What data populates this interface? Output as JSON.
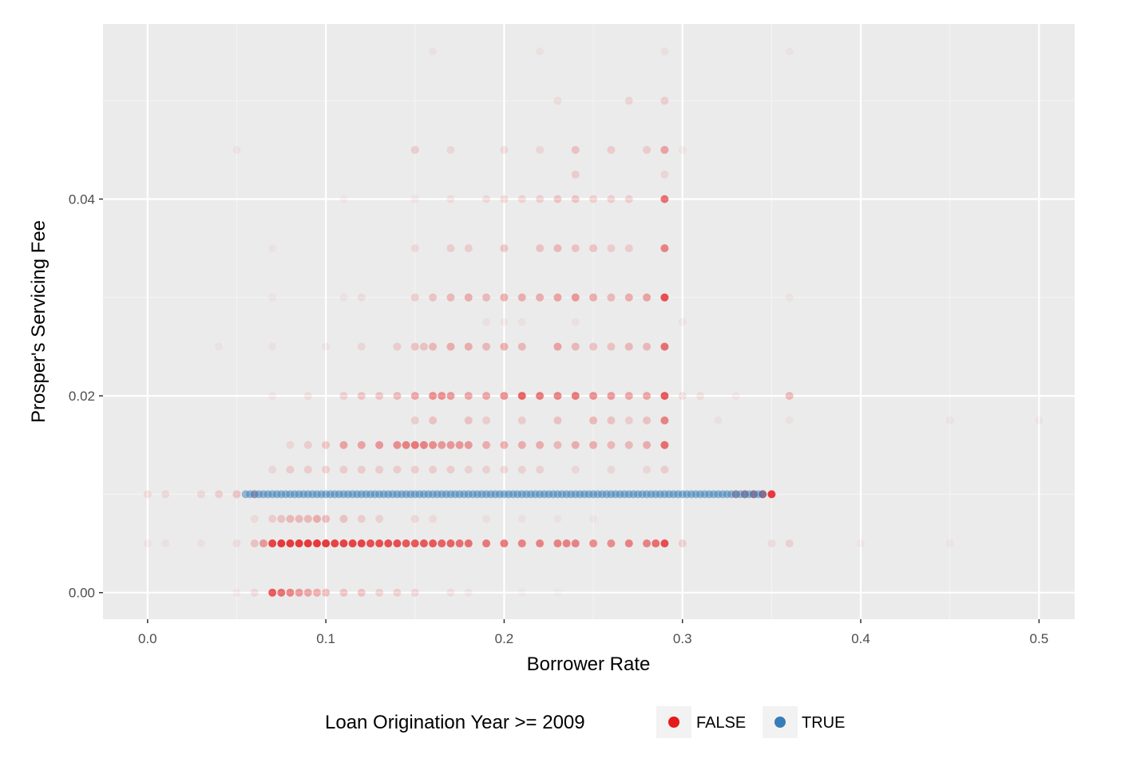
{
  "chart_data": {
    "type": "scatter",
    "title": "",
    "xlabel": "Borrower Rate",
    "ylabel": "Prosper's Servicing Fee",
    "xlim": [
      -0.025,
      0.52
    ],
    "ylim": [
      -0.0027,
      0.0578
    ],
    "x_ticks": [
      0.0,
      0.1,
      0.2,
      0.3,
      0.4,
      0.5
    ],
    "x_tick_labels": [
      "0.0",
      "0.1",
      "0.2",
      "0.3",
      "0.4",
      "0.5"
    ],
    "y_ticks": [
      0.0,
      0.02,
      0.04
    ],
    "y_tick_labels": [
      "0.00",
      "0.02",
      "0.04"
    ],
    "y_minor_ticks": [
      0.01,
      0.03,
      0.05
    ],
    "x_minor_ticks": [
      0.05,
      0.15,
      0.25,
      0.35,
      0.45
    ],
    "grid": true,
    "legend_position": "bottom",
    "legend": {
      "title": "Loan Origination Year >= 2009",
      "entries": [
        {
          "label": "FALSE",
          "color": "#e41a1c"
        },
        {
          "label": "TRUE",
          "color": "#377eb8"
        }
      ]
    },
    "series": [
      {
        "name": "FALSE",
        "color": "#e41a1c",
        "rows": [
          {
            "y": 0.0,
            "x": [
              0.05,
              0.06,
              0.07,
              0.075,
              0.08,
              0.085,
              0.09,
              0.095,
              0.1,
              0.11,
              0.12,
              0.13,
              0.14,
              0.15,
              0.17,
              0.18,
              0.21,
              0.23
            ],
            "alpha": [
              0.05,
              0.1,
              0.7,
              0.6,
              0.5,
              0.4,
              0.35,
              0.3,
              0.25,
              0.2,
              0.2,
              0.15,
              0.15,
              0.12,
              0.08,
              0.06,
              0.03,
              0.03
            ]
          },
          {
            "y": 0.005,
            "x": [
              0.0,
              0.01,
              0.03,
              0.05,
              0.06,
              0.065,
              0.07,
              0.075,
              0.08,
              0.085,
              0.09,
              0.095,
              0.1,
              0.105,
              0.11,
              0.115,
              0.12,
              0.125,
              0.13,
              0.135,
              0.14,
              0.145,
              0.15,
              0.155,
              0.16,
              0.165,
              0.17,
              0.175,
              0.18,
              0.19,
              0.2,
              0.21,
              0.22,
              0.23,
              0.235,
              0.24,
              0.25,
              0.26,
              0.27,
              0.28,
              0.285,
              0.29,
              0.3,
              0.35,
              0.36,
              0.4
            ],
            "alpha": [
              0.05,
              0.05,
              0.05,
              0.08,
              0.2,
              0.4,
              0.8,
              0.85,
              0.85,
              0.85,
              0.85,
              0.85,
              0.85,
              0.8,
              0.8,
              0.8,
              0.8,
              0.75,
              0.75,
              0.75,
              0.75,
              0.7,
              0.7,
              0.7,
              0.7,
              0.65,
              0.65,
              0.6,
              0.6,
              0.55,
              0.55,
              0.5,
              0.5,
              0.5,
              0.5,
              0.5,
              0.45,
              0.45,
              0.5,
              0.5,
              0.6,
              0.75,
              0.15,
              0.08,
              0.12,
              0.04
            ]
          },
          {
            "y": 0.0075,
            "x": [
              0.06,
              0.07,
              0.075,
              0.08,
              0.085,
              0.09,
              0.095,
              0.1,
              0.11,
              0.12,
              0.13,
              0.15,
              0.16,
              0.19,
              0.21,
              0.23,
              0.25
            ],
            "alpha": [
              0.08,
              0.15,
              0.2,
              0.25,
              0.25,
              0.25,
              0.3,
              0.25,
              0.2,
              0.15,
              0.12,
              0.1,
              0.08,
              0.06,
              0.05,
              0.04,
              0.04
            ]
          },
          {
            "y": 0.01,
            "x": [
              0.0,
              0.01,
              0.03,
              0.04,
              0.05,
              0.06,
              0.33,
              0.335,
              0.34,
              0.345,
              0.35
            ],
            "alpha": [
              0.1,
              0.1,
              0.1,
              0.15,
              0.2,
              0.3,
              0.4,
              0.5,
              0.6,
              0.7,
              0.85
            ]
          },
          {
            "y": 0.0125,
            "x": [
              0.07,
              0.08,
              0.09,
              0.1,
              0.11,
              0.12,
              0.13,
              0.14,
              0.15,
              0.16,
              0.17,
              0.18,
              0.19,
              0.2,
              0.21,
              0.22,
              0.24,
              0.26,
              0.28,
              0.29
            ],
            "alpha": [
              0.1,
              0.15,
              0.15,
              0.15,
              0.15,
              0.15,
              0.15,
              0.15,
              0.15,
              0.15,
              0.15,
              0.12,
              0.12,
              0.12,
              0.12,
              0.12,
              0.1,
              0.1,
              0.1,
              0.15
            ]
          },
          {
            "y": 0.015,
            "x": [
              0.08,
              0.09,
              0.1,
              0.11,
              0.12,
              0.13,
              0.14,
              0.145,
              0.15,
              0.155,
              0.16,
              0.165,
              0.17,
              0.175,
              0.18,
              0.19,
              0.2,
              0.21,
              0.22,
              0.23,
              0.24,
              0.25,
              0.26,
              0.27,
              0.28,
              0.29
            ],
            "alpha": [
              0.1,
              0.15,
              0.2,
              0.35,
              0.35,
              0.4,
              0.45,
              0.5,
              0.55,
              0.5,
              0.45,
              0.4,
              0.4,
              0.4,
              0.4,
              0.3,
              0.3,
              0.3,
              0.3,
              0.25,
              0.3,
              0.3,
              0.25,
              0.25,
              0.3,
              0.6
            ]
          },
          {
            "y": 0.0175,
            "x": [
              0.15,
              0.16,
              0.18,
              0.19,
              0.21,
              0.23,
              0.25,
              0.26,
              0.27,
              0.28,
              0.29,
              0.32,
              0.36
            ],
            "alpha": [
              0.15,
              0.2,
              0.2,
              0.15,
              0.15,
              0.2,
              0.25,
              0.2,
              0.15,
              0.2,
              0.5,
              0.05,
              0.05
            ]
          },
          {
            "y": 0.02,
            "x": [
              0.07,
              0.09,
              0.11,
              0.12,
              0.13,
              0.14,
              0.15,
              0.16,
              0.165,
              0.17,
              0.18,
              0.19,
              0.2,
              0.21,
              0.22,
              0.23,
              0.24,
              0.25,
              0.26,
              0.27,
              0.28,
              0.29,
              0.3,
              0.31,
              0.33,
              0.36
            ],
            "alpha": [
              0.05,
              0.08,
              0.15,
              0.2,
              0.2,
              0.25,
              0.35,
              0.45,
              0.45,
              0.4,
              0.35,
              0.35,
              0.45,
              0.65,
              0.55,
              0.5,
              0.55,
              0.45,
              0.4,
              0.35,
              0.35,
              0.7,
              0.1,
              0.08,
              0.05,
              0.25
            ]
          },
          {
            "y": 0.025,
            "x": [
              0.04,
              0.07,
              0.1,
              0.12,
              0.14,
              0.15,
              0.155,
              0.16,
              0.17,
              0.18,
              0.19,
              0.2,
              0.21,
              0.23,
              0.24,
              0.25,
              0.26,
              0.27,
              0.28,
              0.29
            ],
            "alpha": [
              0.04,
              0.05,
              0.06,
              0.1,
              0.15,
              0.2,
              0.2,
              0.25,
              0.3,
              0.3,
              0.25,
              0.3,
              0.25,
              0.35,
              0.25,
              0.2,
              0.2,
              0.25,
              0.25,
              0.6
            ]
          },
          {
            "y": 0.03,
            "x": [
              0.07,
              0.11,
              0.12,
              0.15,
              0.16,
              0.17,
              0.18,
              0.19,
              0.2,
              0.21,
              0.22,
              0.23,
              0.24,
              0.25,
              0.26,
              0.27,
              0.28,
              0.29,
              0.36
            ],
            "alpha": [
              0.04,
              0.05,
              0.08,
              0.15,
              0.2,
              0.25,
              0.3,
              0.25,
              0.3,
              0.3,
              0.3,
              0.35,
              0.4,
              0.3,
              0.25,
              0.3,
              0.35,
              0.75,
              0.05
            ]
          },
          {
            "y": 0.035,
            "x": [
              0.07,
              0.15,
              0.17,
              0.18,
              0.2,
              0.22,
              0.23,
              0.24,
              0.25,
              0.26,
              0.27,
              0.29
            ],
            "alpha": [
              0.04,
              0.1,
              0.15,
              0.15,
              0.2,
              0.2,
              0.25,
              0.2,
              0.2,
              0.15,
              0.15,
              0.5
            ]
          },
          {
            "y": 0.04,
            "x": [
              0.11,
              0.15,
              0.17,
              0.19,
              0.2,
              0.21,
              0.22,
              0.23,
              0.24,
              0.25,
              0.26,
              0.27,
              0.29
            ],
            "alpha": [
              0.04,
              0.06,
              0.08,
              0.1,
              0.12,
              0.12,
              0.15,
              0.2,
              0.2,
              0.15,
              0.15,
              0.15,
              0.6
            ]
          },
          {
            "y": 0.045,
            "x": [
              0.05,
              0.15,
              0.17,
              0.2,
              0.22,
              0.24,
              0.26,
              0.28,
              0.29,
              0.3
            ],
            "alpha": [
              0.05,
              0.15,
              0.1,
              0.1,
              0.1,
              0.2,
              0.15,
              0.15,
              0.35,
              0.05
            ]
          },
          {
            "y": 0.05,
            "x": [
              0.23,
              0.27,
              0.29
            ],
            "alpha": [
              0.08,
              0.12,
              0.15
            ]
          },
          {
            "y": 0.055,
            "x": [
              0.16,
              0.22,
              0.29,
              0.36
            ],
            "alpha": [
              0.05,
              0.05,
              0.06,
              0.04
            ]
          },
          {
            "y": 0.0275,
            "x": [
              0.19,
              0.2,
              0.21,
              0.24,
              0.3
            ],
            "alpha": [
              0.05,
              0.05,
              0.05,
              0.05,
              0.05
            ]
          },
          {
            "y": 0.0425,
            "x": [
              0.24,
              0.29
            ],
            "alpha": [
              0.15,
              0.1
            ]
          },
          {
            "y": 0.005,
            "x": [
              0.45
            ],
            "alpha": [
              0.04
            ]
          },
          {
            "y": 0.0175,
            "x": [
              0.45,
              0.5
            ],
            "alpha": [
              0.04,
              0.04
            ]
          }
        ]
      },
      {
        "name": "TRUE",
        "color": "#377eb8",
        "rows": [
          {
            "y": 0.01,
            "x_range": [
              0.055,
              0.345
            ],
            "step": 0.0025,
            "alpha": 0.5
          }
        ]
      }
    ]
  }
}
